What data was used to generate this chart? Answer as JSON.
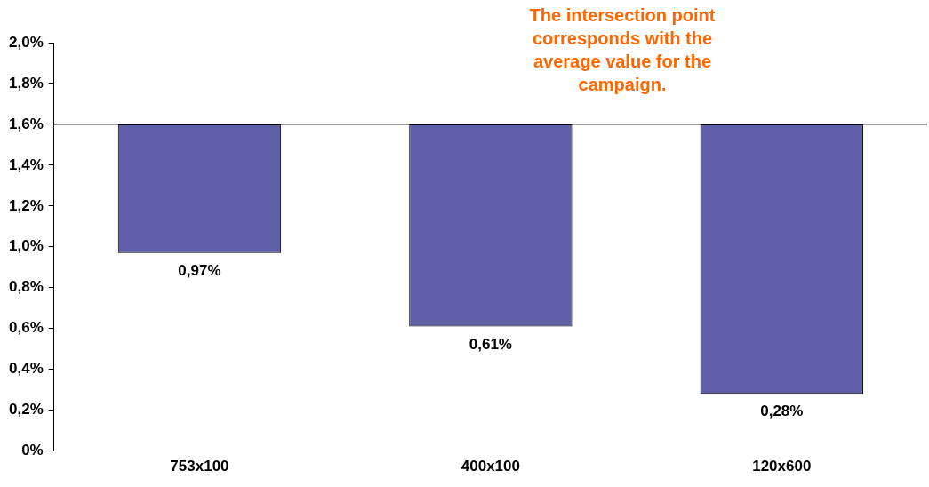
{
  "chart_data": {
    "type": "bar",
    "categories": [
      "753x100",
      "400x100",
      "120x600"
    ],
    "base": [
      1.6,
      1.6,
      1.6
    ],
    "values": [
      -0.63,
      -0.99,
      -1.32
    ],
    "value_labels": [
      "0,97%",
      "0,61%",
      "0,28%"
    ],
    "color": "#5f5fa8",
    "ylim": [
      0,
      2.0
    ],
    "yticks": [
      {
        "value": 0,
        "label": "0%"
      },
      {
        "value": 0.2,
        "label": "0,2%"
      },
      {
        "value": 0.4,
        "label": "0,4%"
      },
      {
        "value": 0.6,
        "label": "0,6%"
      },
      {
        "value": 0.8,
        "label": "0,8%"
      },
      {
        "value": 1.0,
        "label": "1,0%"
      },
      {
        "value": 1.2,
        "label": "1,2%"
      },
      {
        "value": 1.4,
        "label": "1,4%"
      },
      {
        "value": 1.6,
        "label": "1,6%"
      },
      {
        "value": 1.8,
        "label": "1,8%"
      },
      {
        "value": 2.0,
        "label": "2,0%"
      }
    ],
    "ref_lines": [
      {
        "axis": "y",
        "value": 1.6,
        "color": "#000000"
      }
    ],
    "annotations": [
      "The intersection point corresponds with the average value for the campaign."
    ],
    "grid": false,
    "legend": false
  }
}
